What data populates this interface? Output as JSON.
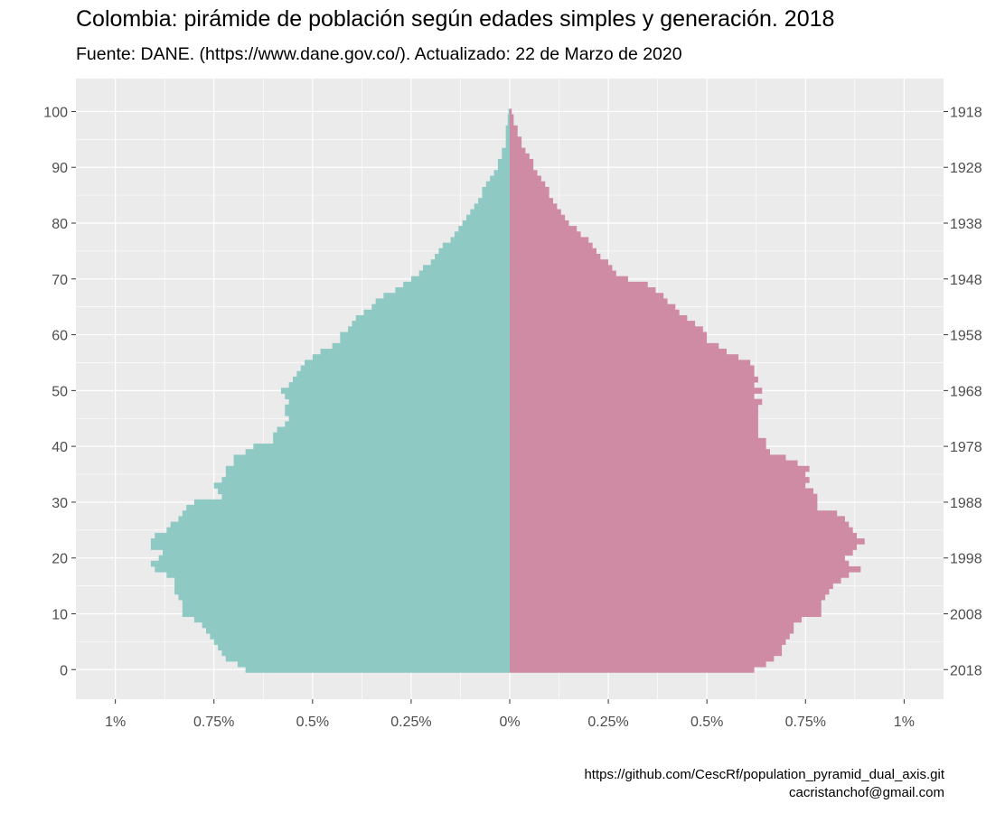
{
  "title": "Colombia: pirámide de población según edades simples y generación. 2018",
  "subtitle": "Fuente: DANE. (https://www.dane.gov.co/). Actualizado: 22 de Marzo de 2020",
  "caption": {
    "line1": "https://github.com/CescRf/population_pyramid_dual_axis.git",
    "line2": "cacristanchof@gmail.com"
  },
  "colors": {
    "panel": "#ebebeb",
    "grid": "#ffffff",
    "left": "#8fc9c4",
    "right": "#cf8aa4",
    "tick_text": "#4d4d4d"
  },
  "chart_data": {
    "type": "bar",
    "orientation": "horizontal",
    "layout": "population pyramid (dual axis)",
    "x_tick_labels": [
      "1%",
      "0.75%",
      "0.5%",
      "0.25%",
      "0%",
      "0.25%",
      "0.5%",
      "0.75%",
      "1%"
    ],
    "x_tick_values": [
      -1,
      -0.75,
      -0.5,
      -0.25,
      0,
      0.25,
      0.5,
      0.75,
      1
    ],
    "xlim": [
      -1.1,
      1.1
    ],
    "y_left_ticks": [
      0,
      10,
      20,
      30,
      40,
      50,
      60,
      70,
      80,
      90,
      100
    ],
    "y_right_tick_labels": [
      "2018",
      "2008",
      "1998",
      "1988",
      "1978",
      "1968",
      "1958",
      "1948",
      "1938",
      "1928",
      "1918"
    ],
    "ylim": [
      -5.3,
      105.9
    ],
    "grid": true,
    "ages": [
      0,
      1,
      2,
      3,
      4,
      5,
      6,
      7,
      8,
      9,
      10,
      11,
      12,
      13,
      14,
      15,
      16,
      17,
      18,
      19,
      20,
      21,
      22,
      23,
      24,
      25,
      26,
      27,
      28,
      29,
      30,
      31,
      32,
      33,
      34,
      35,
      36,
      37,
      38,
      39,
      40,
      41,
      42,
      43,
      44,
      45,
      46,
      47,
      48,
      49,
      50,
      51,
      52,
      53,
      54,
      55,
      56,
      57,
      58,
      59,
      60,
      61,
      62,
      63,
      64,
      65,
      66,
      67,
      68,
      69,
      70,
      71,
      72,
      73,
      74,
      75,
      76,
      77,
      78,
      79,
      80,
      81,
      82,
      83,
      84,
      85,
      86,
      87,
      88,
      89,
      90,
      91,
      92,
      93,
      94,
      95,
      96,
      97,
      98,
      99,
      100
    ],
    "series": [
      {
        "side": "left",
        "values": [
          0.67,
          0.69,
          0.72,
          0.73,
          0.74,
          0.75,
          0.76,
          0.77,
          0.78,
          0.8,
          0.83,
          0.83,
          0.83,
          0.84,
          0.85,
          0.85,
          0.85,
          0.87,
          0.9,
          0.91,
          0.89,
          0.88,
          0.91,
          0.91,
          0.9,
          0.87,
          0.86,
          0.84,
          0.83,
          0.82,
          0.8,
          0.73,
          0.74,
          0.75,
          0.73,
          0.72,
          0.72,
          0.7,
          0.7,
          0.67,
          0.65,
          0.6,
          0.6,
          0.59,
          0.57,
          0.56,
          0.57,
          0.57,
          0.56,
          0.57,
          0.58,
          0.56,
          0.55,
          0.54,
          0.53,
          0.52,
          0.5,
          0.48,
          0.45,
          0.43,
          0.43,
          0.41,
          0.4,
          0.39,
          0.37,
          0.35,
          0.34,
          0.32,
          0.29,
          0.27,
          0.25,
          0.23,
          0.22,
          0.2,
          0.19,
          0.18,
          0.17,
          0.15,
          0.14,
          0.13,
          0.12,
          0.11,
          0.1,
          0.09,
          0.08,
          0.07,
          0.07,
          0.06,
          0.05,
          0.04,
          0.03,
          0.03,
          0.02,
          0.02,
          0.01,
          0.01,
          0.01,
          0.01,
          0.005,
          0.005,
          0.003
        ]
      },
      {
        "side": "right",
        "values": [
          0.62,
          0.65,
          0.67,
          0.69,
          0.69,
          0.7,
          0.71,
          0.72,
          0.72,
          0.74,
          0.79,
          0.79,
          0.79,
          0.8,
          0.81,
          0.82,
          0.84,
          0.86,
          0.89,
          0.86,
          0.85,
          0.87,
          0.88,
          0.9,
          0.88,
          0.87,
          0.86,
          0.85,
          0.83,
          0.78,
          0.78,
          0.78,
          0.77,
          0.75,
          0.76,
          0.75,
          0.76,
          0.73,
          0.7,
          0.66,
          0.65,
          0.65,
          0.63,
          0.63,
          0.63,
          0.63,
          0.63,
          0.63,
          0.64,
          0.62,
          0.64,
          0.62,
          0.63,
          0.62,
          0.62,
          0.61,
          0.58,
          0.55,
          0.53,
          0.5,
          0.5,
          0.49,
          0.47,
          0.45,
          0.43,
          0.42,
          0.4,
          0.39,
          0.37,
          0.35,
          0.3,
          0.27,
          0.26,
          0.25,
          0.23,
          0.22,
          0.21,
          0.2,
          0.18,
          0.17,
          0.15,
          0.14,
          0.13,
          0.12,
          0.11,
          0.1,
          0.1,
          0.09,
          0.08,
          0.07,
          0.06,
          0.06,
          0.05,
          0.04,
          0.03,
          0.03,
          0.02,
          0.02,
          0.01,
          0.01,
          0.005
        ]
      }
    ]
  }
}
